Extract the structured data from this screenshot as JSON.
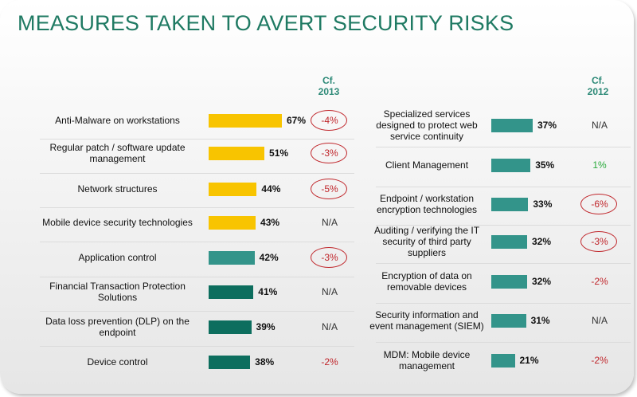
{
  "title": "MEASURES TAKEN TO AVERT SECURITY RISKS",
  "left_cf": "Cf.\n2013",
  "right_cf": "Cf.\n2012",
  "colors": {
    "yellow": "#f8c400",
    "teal": "#33948a",
    "dark_teal": "#0d6e5e",
    "red": "#c0262b",
    "green": "#2aaa3c",
    "title": "#1f7a63"
  },
  "chart_data": [
    {
      "type": "bar",
      "orientation": "horizontal",
      "title": "",
      "comparison_label": "Cf. 2013",
      "categories": [
        "Anti-Malware on workstations",
        "Regular patch / software update management",
        "Network structures",
        "Mobile device security technologies",
        "Application control",
        "Financial Transaction Protection Solutions",
        "Data loss prevention (DLP) on the endpoint",
        "Device control"
      ],
      "values": [
        67,
        51,
        44,
        43,
        42,
        41,
        39,
        38
      ],
      "value_labels": [
        "67%",
        "51%",
        "44%",
        "43%",
        "42%",
        "41%",
        "39%",
        "38%"
      ],
      "bar_colors": [
        "yellow",
        "yellow",
        "yellow",
        "yellow",
        "teal",
        "dark_teal",
        "dark_teal",
        "dark_teal"
      ],
      "comparison": [
        "-4%",
        "-3%",
        "-5%",
        "N/A",
        "-3%",
        "N/A",
        "N/A",
        "-2%"
      ],
      "comparison_circled": [
        true,
        true,
        true,
        false,
        true,
        false,
        false,
        false
      ],
      "xlim": [
        0,
        100
      ]
    },
    {
      "type": "bar",
      "orientation": "horizontal",
      "title": "",
      "comparison_label": "Cf. 2012",
      "categories": [
        "Specialized services designed to protect web service continuity",
        "Client Management",
        "Endpoint / workstation encryption technologies",
        "Auditing / verifying the IT security of third party suppliers",
        "Encryption of data on removable devices",
        "Security information and event management (SIEM)",
        "MDM: Mobile device management"
      ],
      "values": [
        37,
        35,
        33,
        32,
        32,
        31,
        21
      ],
      "value_labels": [
        "37%",
        "35%",
        "33%",
        "32%",
        "32%",
        "31%",
        "21%"
      ],
      "bar_colors": [
        "teal",
        "teal",
        "teal",
        "teal",
        "teal",
        "teal",
        "teal"
      ],
      "comparison": [
        "N/A",
        "1%",
        "-6%",
        "-3%",
        "-2%",
        "N/A",
        "-2%"
      ],
      "comparison_circled": [
        false,
        false,
        true,
        true,
        false,
        false,
        false
      ],
      "xlim": [
        0,
        100
      ]
    }
  ]
}
